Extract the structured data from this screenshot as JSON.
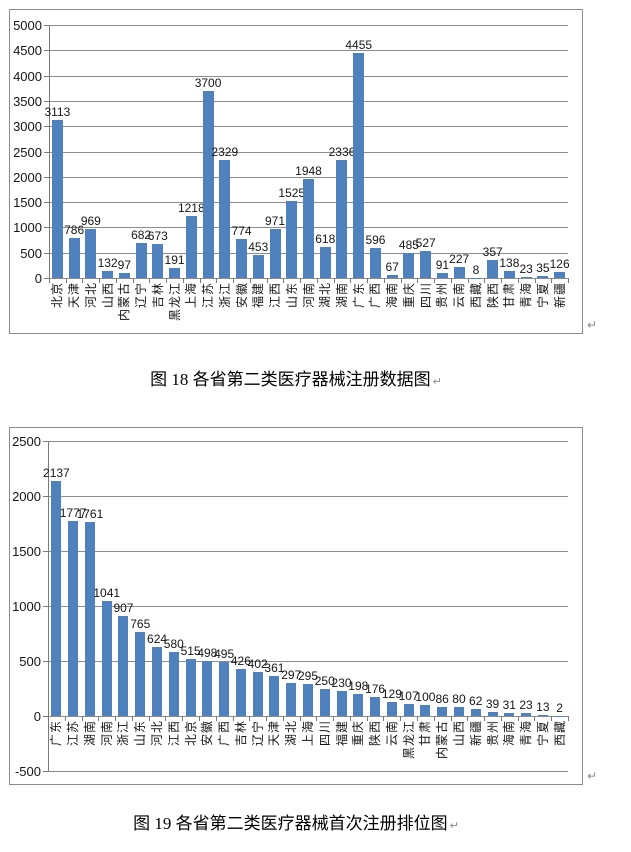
{
  "paragraph_mark": "↵",
  "colors": {
    "bar": "#4F81BD",
    "gridline": "#8C8C8C",
    "border": "#8C8C8C",
    "text": "#161616"
  },
  "chart_data": [
    {
      "type": "bar",
      "title": "",
      "caption": "图 18 各省第二类医疗器械注册数据图",
      "xlabel": "",
      "ylabel": "",
      "legend": "none",
      "grid": true,
      "ylim": [
        0,
        5000
      ],
      "ytick_step": 500,
      "ytick_labels": [
        "5000",
        "4500",
        "4000",
        "3500",
        "3000",
        "2500",
        "2000",
        "1500",
        "1000",
        "500",
        "0"
      ],
      "categories": [
        "北京",
        "天津",
        "河北",
        "山西",
        "内蒙古",
        "辽宁",
        "吉林",
        "黑龙江",
        "上海",
        "江苏",
        "浙江",
        "安徽",
        "福建",
        "江西",
        "山东",
        "河南",
        "湖北",
        "湖南",
        "广东",
        "广西",
        "海南",
        "重庆",
        "四川",
        "贵州",
        "云南",
        "西藏",
        "陕西",
        "甘肃",
        "青海",
        "宁夏",
        "新疆"
      ],
      "values": [
        3113,
        786,
        969,
        132,
        97,
        682,
        673,
        191,
        1218,
        3700,
        2329,
        774,
        453,
        971,
        1525,
        1948,
        618,
        2336,
        4455,
        596,
        67,
        485,
        527,
        91,
        227,
        8,
        357,
        138,
        23,
        35,
        126
      ]
    },
    {
      "type": "bar",
      "title": "",
      "caption": "图 19 各省第二类医疗器械首次注册排位图",
      "xlabel": "",
      "ylabel": "",
      "legend": "none",
      "grid": true,
      "ylim": [
        -500,
        2500
      ],
      "ytick_step": 500,
      "ytick_labels": [
        "2500",
        "2000",
        "1500",
        "1000",
        "500",
        "0",
        "-500"
      ],
      "categories": [
        "广东",
        "江苏",
        "湖南",
        "河南",
        "浙江",
        "山东",
        "河北",
        "江西",
        "北京",
        "安徽",
        "广西",
        "吉林",
        "辽宁",
        "天津",
        "湖北",
        "上海",
        "四川",
        "福建",
        "重庆",
        "陕西",
        "云南",
        "黑龙江",
        "甘肃",
        "内蒙古",
        "山西",
        "新疆",
        "贵州",
        "海南",
        "青海",
        "宁夏",
        "西藏"
      ],
      "values": [
        2137,
        1777,
        1761,
        1041,
        907,
        765,
        624,
        580,
        515,
        498,
        495,
        426,
        402,
        361,
        297,
        295,
        250,
        230,
        198,
        176,
        129,
        107,
        100,
        86,
        80,
        62,
        39,
        31,
        23,
        13,
        2
      ]
    }
  ]
}
